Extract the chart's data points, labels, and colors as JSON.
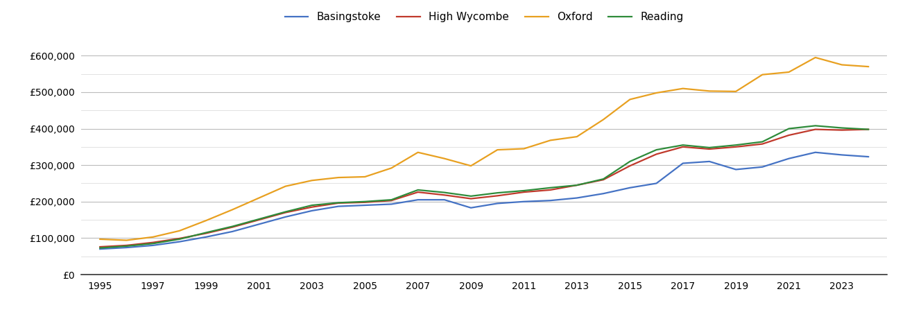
{
  "title": "",
  "years": [
    1995,
    1996,
    1997,
    1998,
    1999,
    2000,
    2001,
    2002,
    2003,
    2004,
    2005,
    2006,
    2007,
    2008,
    2009,
    2010,
    2011,
    2012,
    2013,
    2014,
    2015,
    2016,
    2017,
    2018,
    2019,
    2020,
    2021,
    2022,
    2023,
    2024
  ],
  "series": {
    "Basingstoke": [
      70000,
      74000,
      80000,
      90000,
      103000,
      118000,
      138000,
      158000,
      175000,
      187000,
      190000,
      193000,
      205000,
      205000,
      183000,
      195000,
      200000,
      203000,
      210000,
      222000,
      238000,
      250000,
      305000,
      310000,
      288000,
      295000,
      318000,
      335000,
      328000,
      323000
    ],
    "High Wycombe": [
      76000,
      80000,
      88000,
      99000,
      113000,
      130000,
      150000,
      170000,
      185000,
      196000,
      198000,
      203000,
      226000,
      218000,
      208000,
      216000,
      226000,
      232000,
      245000,
      260000,
      298000,
      330000,
      350000,
      344000,
      350000,
      358000,
      382000,
      398000,
      396000,
      398000
    ],
    "Oxford": [
      97000,
      94000,
      103000,
      120000,
      148000,
      178000,
      210000,
      242000,
      258000,
      266000,
      268000,
      292000,
      335000,
      318000,
      298000,
      342000,
      345000,
      368000,
      378000,
      425000,
      480000,
      498000,
      510000,
      503000,
      502000,
      548000,
      555000,
      595000,
      575000,
      570000
    ],
    "Reading": [
      73000,
      78000,
      85000,
      97000,
      115000,
      132000,
      152000,
      172000,
      190000,
      197000,
      200000,
      205000,
      232000,
      225000,
      215000,
      224000,
      230000,
      238000,
      245000,
      262000,
      310000,
      342000,
      355000,
      348000,
      355000,
      364000,
      400000,
      408000,
      402000,
      398000
    ]
  },
  "colors": {
    "Basingstoke": "#4472C4",
    "High Wycombe": "#C0392B",
    "Oxford": "#E8A020",
    "Reading": "#2E8B3A"
  },
  "ylim": [
    0,
    650000
  ],
  "yticks_major": [
    0,
    100000,
    200000,
    300000,
    400000,
    500000,
    600000
  ],
  "yticks_minor": [
    50000,
    150000,
    250000,
    350000,
    450000,
    550000
  ],
  "ytick_labels": [
    "£0",
    "£100,000",
    "£200,000",
    "£300,000",
    "£400,000",
    "£500,000",
    "£600,000"
  ],
  "background_color": "#ffffff",
  "grid_color_major": "#bbbbbb",
  "grid_color_minor": "#dddddd",
  "legend_order": [
    "Basingstoke",
    "High Wycombe",
    "Oxford",
    "Reading"
  ]
}
